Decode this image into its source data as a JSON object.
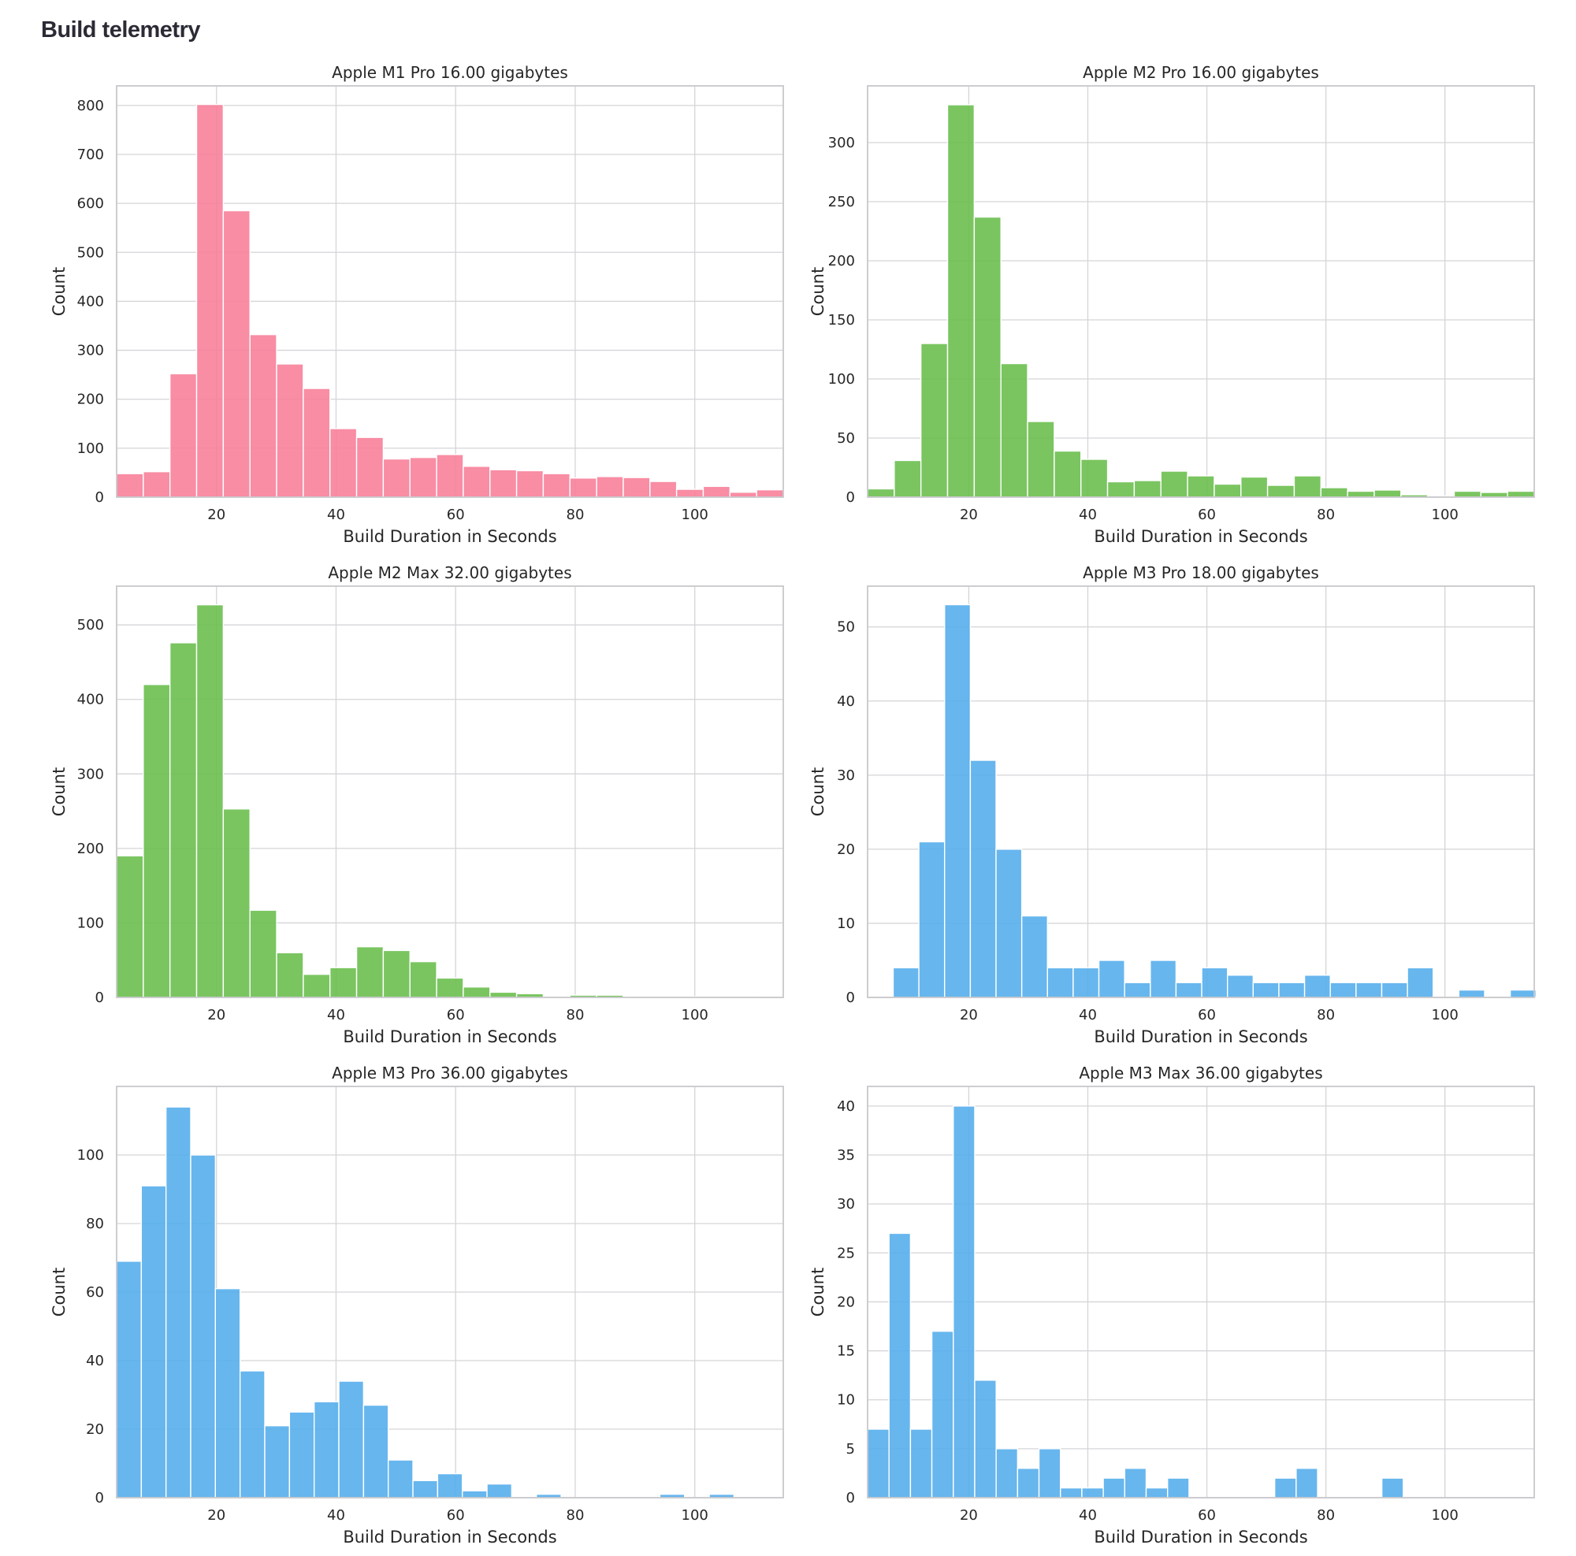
{
  "page": {
    "title": "Build telemetry"
  },
  "colors": {
    "pink": "#f7819a",
    "green": "#6cbf4f",
    "blue": "#56aeec",
    "grid": "#d5d5d9",
    "frame": "#c8c8cc"
  },
  "chart_data": [
    {
      "type": "bar",
      "title": "Apple M1 Pro 16.00 gigabytes",
      "xlabel": "Build Duration in Seconds",
      "ylabel": "Count",
      "color": "pink",
      "xlim": [
        3.3,
        114.8
      ],
      "ylim": [
        0,
        840
      ],
      "xticks": [
        20,
        40,
        60,
        80,
        100
      ],
      "yticks": [
        0,
        100,
        200,
        300,
        400,
        500,
        600,
        700,
        800
      ],
      "bin_start": 3.3,
      "bin_width": 4.46,
      "values": [
        48,
        52,
        252,
        802,
        585,
        332,
        272,
        222,
        140,
        122,
        78,
        81,
        87,
        63,
        56,
        54,
        48,
        39,
        42,
        40,
        32,
        16,
        22,
        10,
        15
      ],
      "grid": true,
      "legend": "none"
    },
    {
      "type": "bar",
      "title": "Apple M2 Pro 16.00 gigabytes",
      "xlabel": "Build Duration in Seconds",
      "ylabel": "Count",
      "color": "green",
      "xlim": [
        3.0,
        115.0
      ],
      "ylim": [
        0,
        348
      ],
      "xticks": [
        20,
        40,
        60,
        80,
        100
      ],
      "yticks": [
        0,
        50,
        100,
        150,
        200,
        250,
        300
      ],
      "bin_start": 3.0,
      "bin_width": 4.48,
      "values": [
        7,
        31,
        130,
        332,
        237,
        113,
        64,
        39,
        32,
        13,
        14,
        22,
        18,
        11,
        17,
        10,
        18,
        8,
        5,
        6,
        2,
        1,
        5,
        4,
        5
      ],
      "grid": true,
      "legend": "none"
    },
    {
      "type": "bar",
      "title": "Apple M2 Max 32.00 gigabytes",
      "xlabel": "Build Duration in Seconds",
      "ylabel": "Count",
      "color": "green",
      "xlim": [
        3.3,
        114.8
      ],
      "ylim": [
        0,
        552
      ],
      "xticks": [
        20,
        40,
        60,
        80,
        100
      ],
      "yticks": [
        0,
        100,
        200,
        300,
        400,
        500
      ],
      "bin_start": 3.3,
      "bin_width": 4.46,
      "values": [
        190,
        420,
        476,
        527,
        253,
        117,
        60,
        31,
        40,
        68,
        63,
        48,
        26,
        14,
        7,
        5,
        1,
        3,
        3,
        1,
        1,
        1,
        1,
        1
      ],
      "grid": true,
      "legend": "none"
    },
    {
      "type": "bar",
      "title": "Apple M3 Pro 18.00 gigabytes",
      "xlabel": "Build Duration in Seconds",
      "ylabel": "Count",
      "color": "blue",
      "xlim": [
        3.0,
        115.0
      ],
      "ylim": [
        0,
        55.5
      ],
      "xticks": [
        20,
        40,
        60,
        80,
        100
      ],
      "yticks": [
        0,
        10,
        20,
        30,
        40,
        50
      ],
      "bin_start": 7.3,
      "bin_width": 4.32,
      "values": [
        4,
        21,
        53,
        32,
        20,
        11,
        4,
        4,
        5,
        2,
        5,
        2,
        4,
        3,
        2,
        2,
        3,
        2,
        2,
        2,
        4,
        0,
        1,
        0,
        1,
        0
      ],
      "grid": true,
      "legend": "none"
    },
    {
      "type": "bar",
      "title": "Apple M3 Pro 36.00 gigabytes",
      "xlabel": "Build Duration in Seconds",
      "ylabel": "Count",
      "color": "blue",
      "xlim": [
        3.3,
        114.8
      ],
      "ylim": [
        0,
        120
      ],
      "xticks": [
        20,
        40,
        60,
        80,
        100
      ],
      "yticks": [
        0,
        20,
        40,
        60,
        80,
        100
      ],
      "bin_start": 3.3,
      "bin_width": 4.13,
      "values": [
        69,
        91,
        114,
        100,
        61,
        37,
        21,
        25,
        28,
        34,
        27,
        11,
        5,
        7,
        2,
        4,
        0,
        1,
        0,
        0,
        0,
        0,
        1,
        0,
        1,
        0,
        0
      ],
      "grid": true,
      "legend": "none"
    },
    {
      "type": "bar",
      "title": "Apple M3 Max 36.00 gigabytes",
      "xlabel": "Build Duration in Seconds",
      "ylabel": "Count",
      "color": "blue",
      "xlim": [
        3.0,
        115.0
      ],
      "ylim": [
        0,
        42
      ],
      "xticks": [
        20,
        40,
        60,
        80,
        100
      ],
      "yticks": [
        0,
        5,
        10,
        15,
        20,
        25,
        30,
        35,
        40
      ],
      "bin_start": 3.0,
      "bin_width": 3.6,
      "values": [
        7,
        27,
        7,
        17,
        40,
        12,
        5,
        3,
        5,
        1,
        1,
        2,
        3,
        1,
        2,
        0,
        0,
        0,
        0,
        2,
        3,
        0,
        0,
        0,
        2,
        0,
        0,
        0,
        0,
        0,
        0
      ],
      "grid": true,
      "legend": "none"
    }
  ]
}
